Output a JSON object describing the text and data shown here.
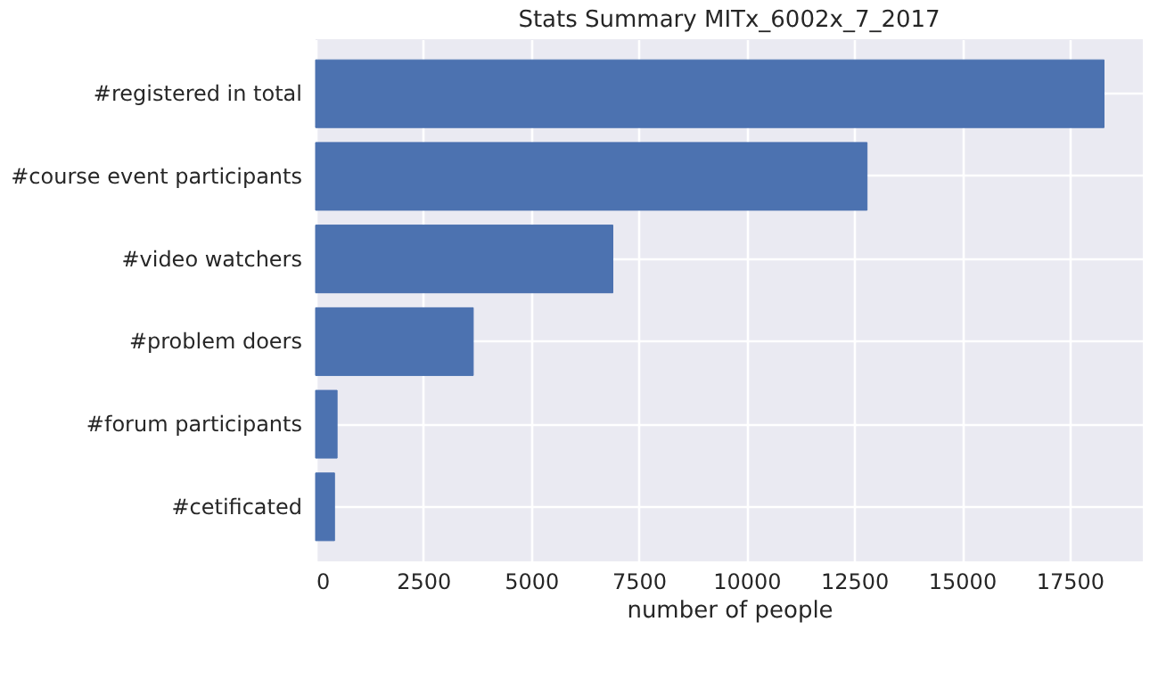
{
  "chart_data": {
    "type": "bar",
    "orientation": "horizontal",
    "title": "Stats Summary MITx_6002x_7_2017",
    "xlabel": "number of people",
    "categories": [
      "#registered in total",
      "#course event participants",
      "#video watchers",
      "#problem doers",
      "#forum participants",
      "#cetificated"
    ],
    "values": [
      18300,
      12800,
      6900,
      3660,
      500,
      440
    ],
    "color": "#4c72b0",
    "xlim": [
      0,
      19200
    ],
    "xticks": [
      0,
      2500,
      5000,
      7500,
      10000,
      12500,
      15000,
      17500
    ],
    "grid": true
  }
}
